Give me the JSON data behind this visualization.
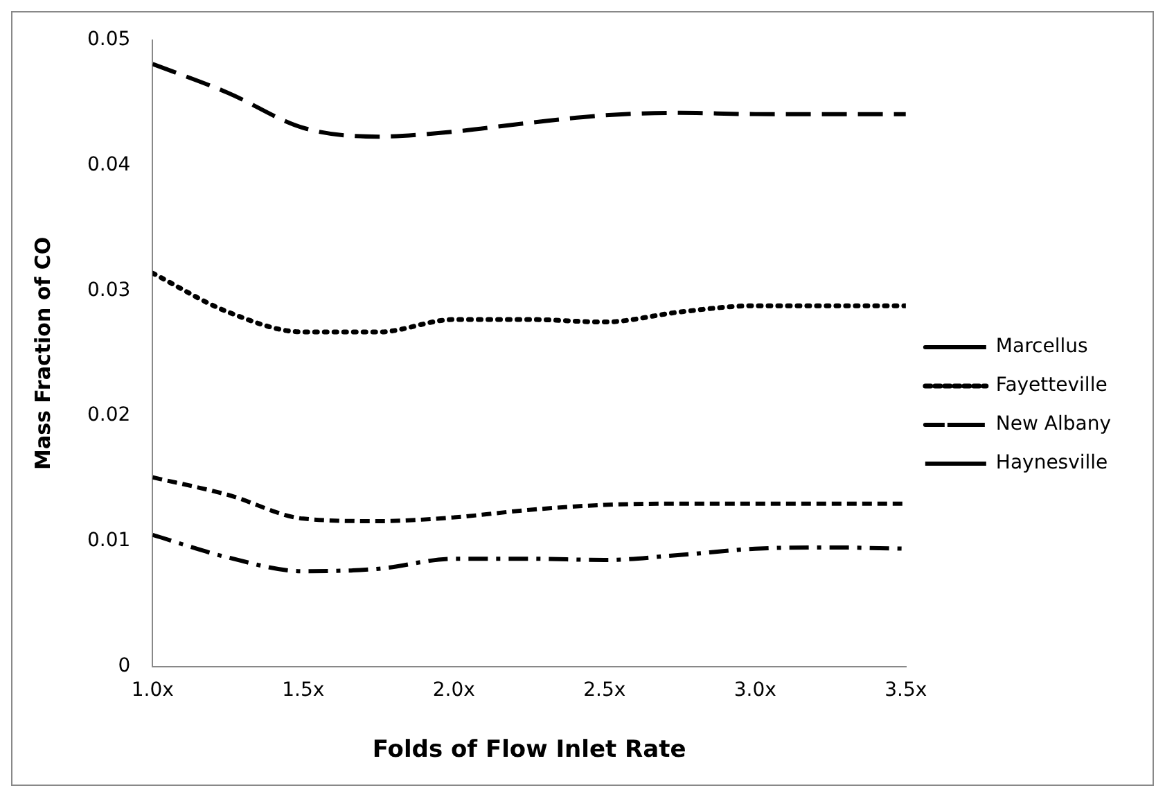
{
  "chart_data": {
    "type": "line",
    "xlabel": "Folds of Flow Inlet Rate",
    "ylabel": "Mass Fraction of CO",
    "x": [
      1.0,
      1.25,
      1.5,
      1.75,
      2.0,
      2.25,
      2.5,
      2.75,
      3.0,
      3.25,
      3.5
    ],
    "series": [
      {
        "name": "Marcellus",
        "color": "#000000",
        "line_style": "dashed",
        "values": [
          0.0481,
          0.0458,
          0.043,
          0.0423,
          0.0427,
          0.0434,
          0.044,
          0.0442,
          0.0441,
          0.0441,
          0.0441
        ]
      },
      {
        "name": "Fayetteville",
        "color": "#000000",
        "line_style": "dotted",
        "values": [
          0.0314,
          0.0283,
          0.0267,
          0.0267,
          0.0277,
          0.0277,
          0.0275,
          0.0283,
          0.0288,
          0.0288,
          0.0288
        ]
      },
      {
        "name": "New Albany",
        "color": "#000000",
        "line_style": "dashed",
        "values": [
          0.0105,
          0.0087,
          0.0076,
          0.0078,
          0.0086,
          0.0086,
          0.0085,
          0.0089,
          0.0094,
          0.0095,
          0.0094
        ]
      },
      {
        "name": "Haynesville",
        "color": "#000000",
        "line_style": "dashed",
        "values": [
          0.0151,
          0.0137,
          0.0118,
          0.0116,
          0.0119,
          0.0125,
          0.0129,
          0.013,
          0.013,
          0.013,
          0.013
        ]
      }
    ],
    "xlim": [
      1.0,
      3.5
    ],
    "xticks": [
      {
        "value": 1.0,
        "label": "1.0x"
      },
      {
        "value": 1.5,
        "label": "1.5x"
      },
      {
        "value": 2.0,
        "label": "2.0x"
      },
      {
        "value": 2.5,
        "label": "2.5x"
      },
      {
        "value": 3.0,
        "label": "3.0x"
      },
      {
        "value": 3.5,
        "label": "3.5x"
      }
    ],
    "ylim": [
      0,
      0.05
    ],
    "yticks": [
      0,
      0.01,
      0.02,
      0.03,
      0.04,
      0.05
    ],
    "grid": false,
    "legend": "right",
    "marker": "none"
  }
}
